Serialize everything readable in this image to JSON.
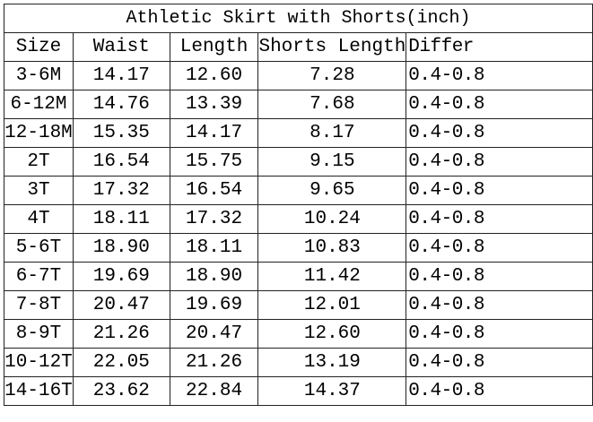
{
  "table": {
    "title": "Athletic Skirt with Shorts(inch)",
    "headers": [
      "Size",
      "Waist",
      "Length",
      "Shorts Length",
      "Differ"
    ],
    "rows": [
      [
        "3-6M",
        "14.17",
        "12.60",
        "7.28",
        "0.4-0.8"
      ],
      [
        "6-12M",
        "14.76",
        "13.39",
        "7.68",
        "0.4-0.8"
      ],
      [
        "12-18M",
        "15.35",
        "14.17",
        "8.17",
        "0.4-0.8"
      ],
      [
        "2T",
        "16.54",
        "15.75",
        "9.15",
        "0.4-0.8"
      ],
      [
        "3T",
        "17.32",
        "16.54",
        "9.65",
        "0.4-0.8"
      ],
      [
        "4T",
        "18.11",
        "17.32",
        "10.24",
        "0.4-0.8"
      ],
      [
        "5-6T",
        "18.90",
        "18.11",
        "10.83",
        "0.4-0.8"
      ],
      [
        "6-7T",
        "19.69",
        "18.90",
        "11.42",
        "0.4-0.8"
      ],
      [
        "7-8T",
        "20.47",
        "19.69",
        "12.01",
        "0.4-0.8"
      ],
      [
        "8-9T",
        "21.26",
        "20.47",
        "12.60",
        "0.4-0.8"
      ],
      [
        "10-12T",
        "22.05",
        "21.26",
        "13.19",
        "0.4-0.8"
      ],
      [
        "14-16T",
        "23.62",
        "22.84",
        "14.37",
        "0.4-0.8"
      ]
    ]
  }
}
